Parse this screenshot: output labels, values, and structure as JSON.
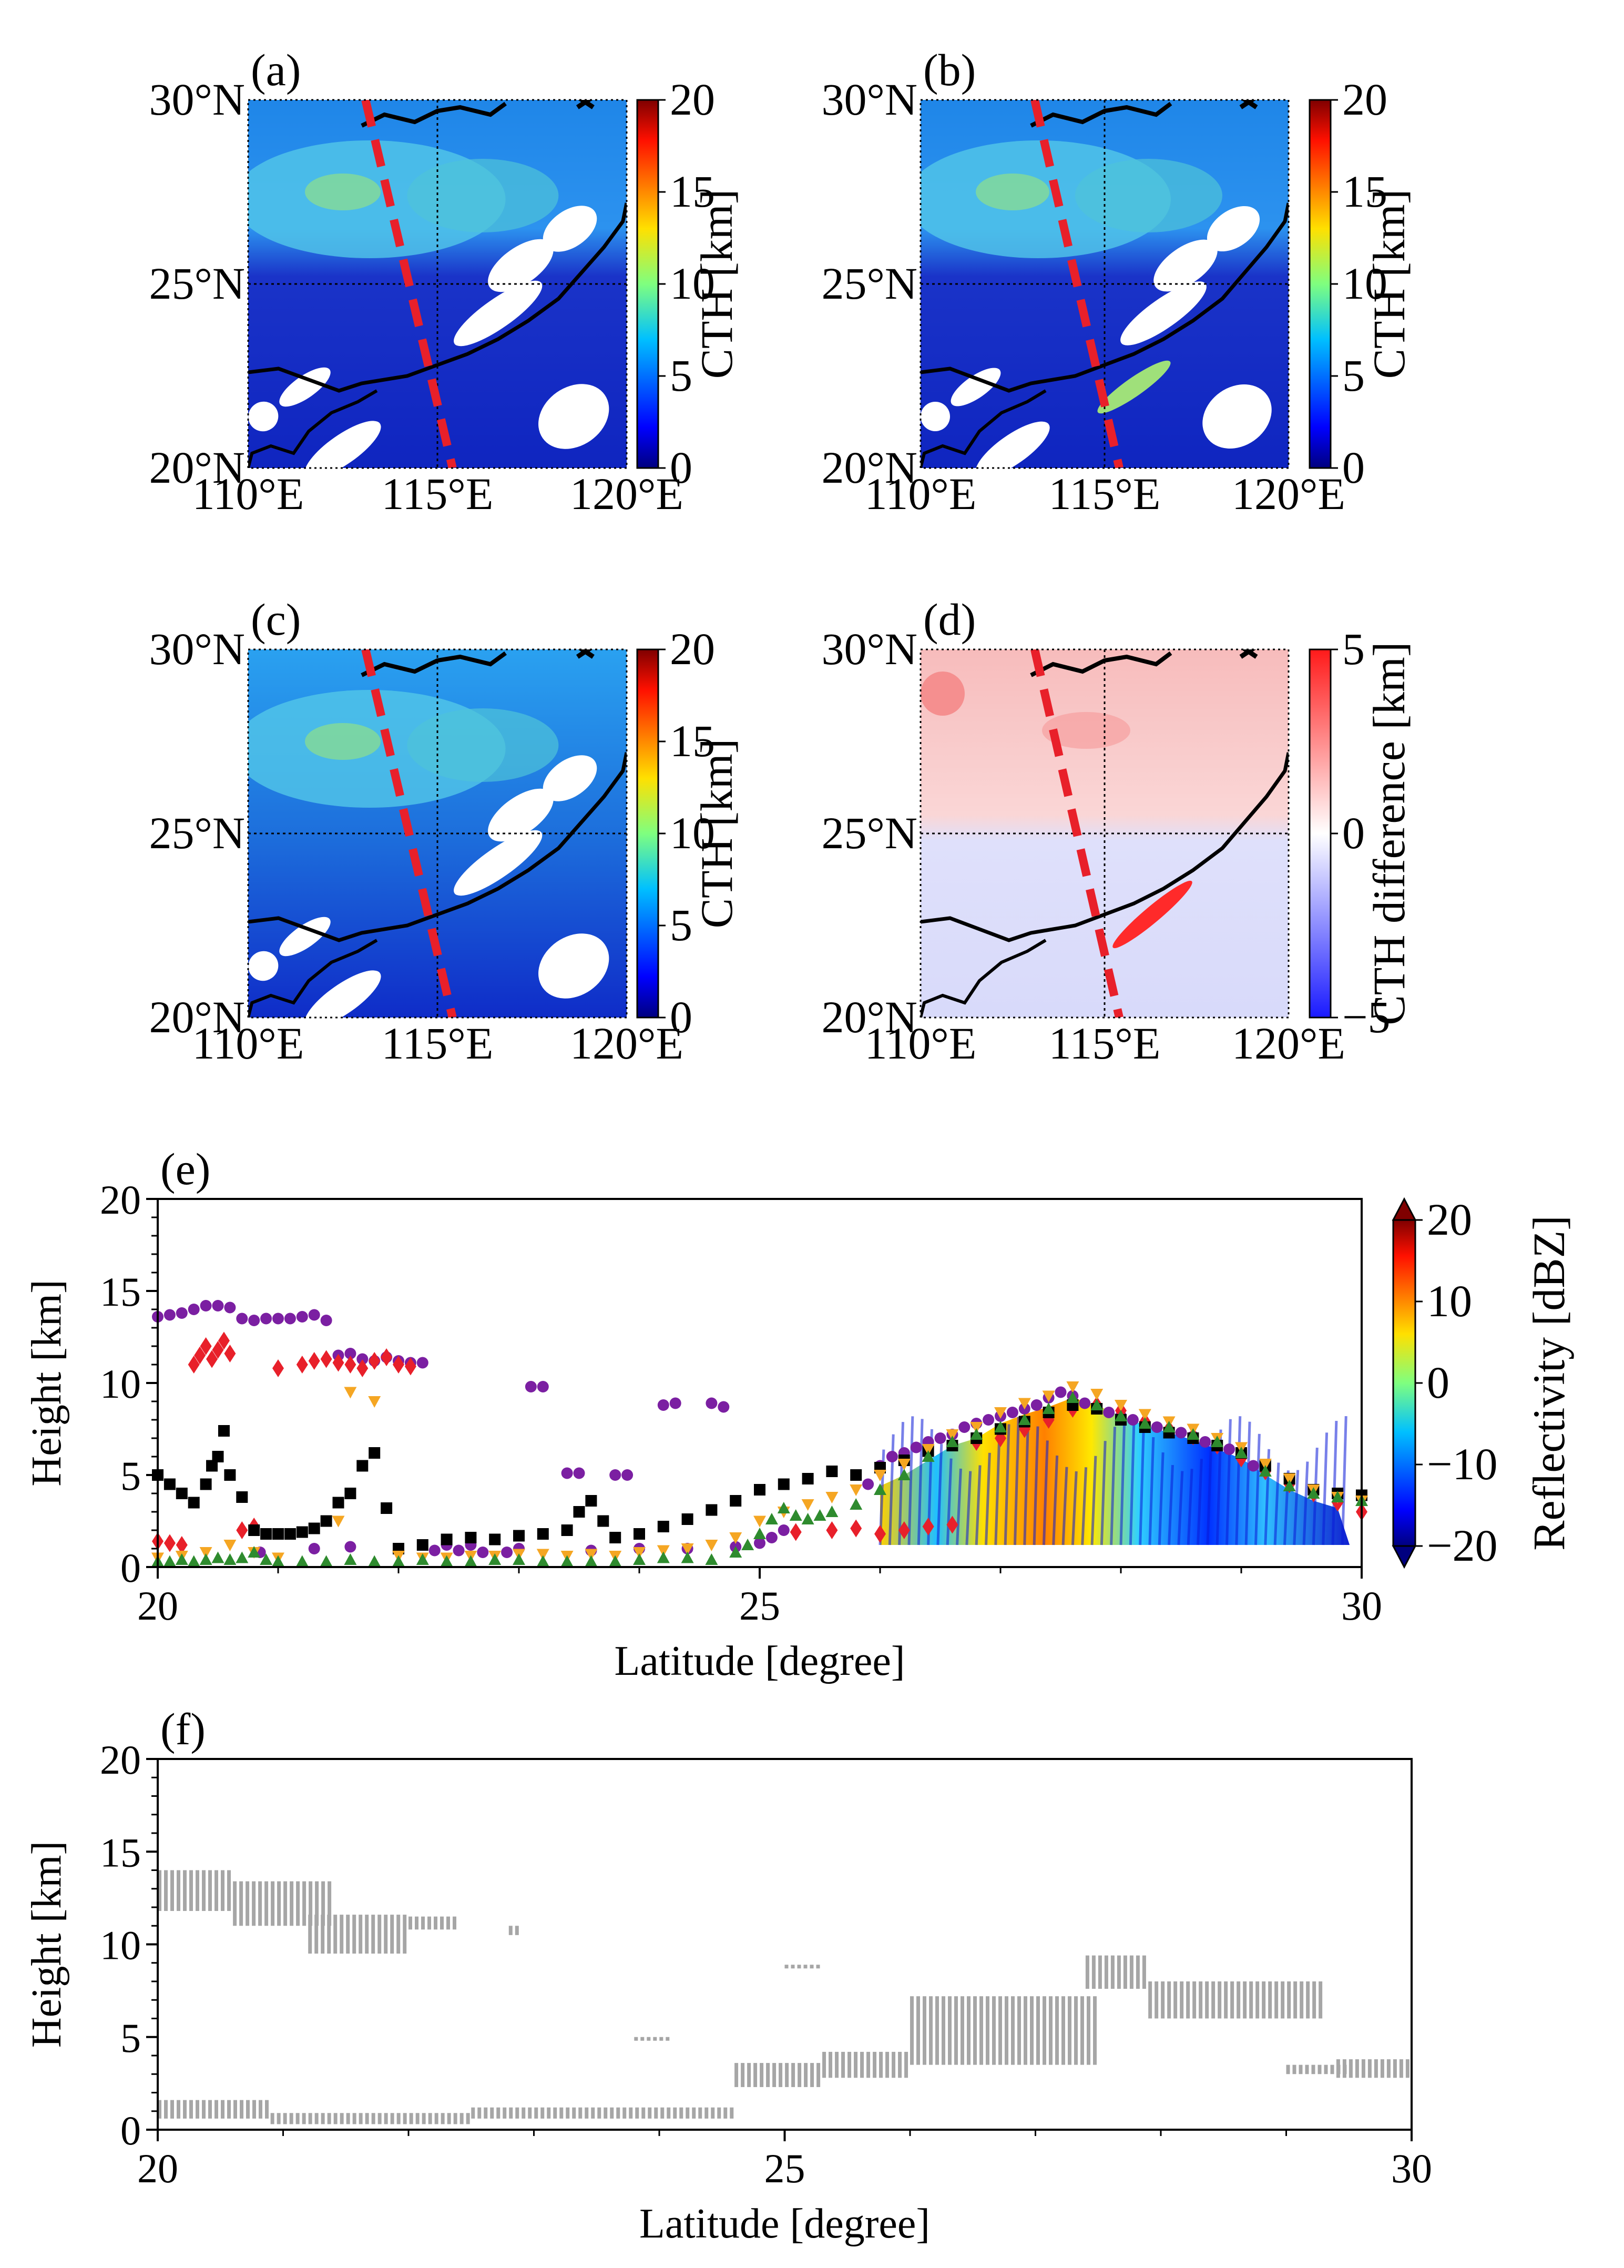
{
  "chart_data": [
    {
      "panel_label": "(a)",
      "type": "heatmap",
      "subtype": "map",
      "lat_ticks": [
        "20°N",
        "25°N",
        "30°N"
      ],
      "lon_ticks": [
        "110°E",
        "115°E",
        "120°E"
      ],
      "lat_range": [
        20,
        30
      ],
      "lon_range": [
        110,
        120
      ],
      "colorbar": {
        "label": "CTH [km]",
        "ticks": [
          "0",
          "5",
          "10",
          "15",
          "20"
        ],
        "range": [
          0,
          20
        ],
        "cmap": "jet"
      },
      "track": {
        "from": [
          113.1,
          30.0
        ],
        "to": [
          115.4,
          20.0
        ],
        "color": "#e8202a",
        "style": "dashed"
      }
    },
    {
      "panel_label": "(b)",
      "type": "heatmap",
      "subtype": "map",
      "lat_ticks": [
        "20°N",
        "25°N",
        "30°N"
      ],
      "lon_ticks": [
        "110°E",
        "115°E",
        "120°E"
      ],
      "lat_range": [
        20,
        30
      ],
      "lon_range": [
        110,
        120
      ],
      "colorbar": {
        "label": "CTH [km]",
        "ticks": [
          "0",
          "5",
          "10",
          "15",
          "20"
        ],
        "range": [
          0,
          20
        ],
        "cmap": "jet"
      },
      "track": {
        "from": [
          113.1,
          30.0
        ],
        "to": [
          115.4,
          20.0
        ],
        "color": "#e8202a",
        "style": "dashed"
      }
    },
    {
      "panel_label": "(c)",
      "type": "heatmap",
      "subtype": "map",
      "lat_ticks": [
        "20°N",
        "25°N",
        "30°N"
      ],
      "lon_ticks": [
        "110°E",
        "115°E",
        "120°E"
      ],
      "lat_range": [
        20,
        30
      ],
      "lon_range": [
        110,
        120
      ],
      "colorbar": {
        "label": "CTH [km]",
        "ticks": [
          "0",
          "5",
          "10",
          "15",
          "20"
        ],
        "range": [
          0,
          20
        ],
        "cmap": "jet"
      },
      "track": {
        "from": [
          113.1,
          30.0
        ],
        "to": [
          115.4,
          20.0
        ],
        "color": "#e8202a",
        "style": "dashed"
      }
    },
    {
      "panel_label": "(d)",
      "type": "heatmap",
      "subtype": "map",
      "lat_ticks": [
        "20°N",
        "25°N",
        "30°N"
      ],
      "lon_ticks": [
        "110°E",
        "115°E",
        "120°E"
      ],
      "lat_range": [
        20,
        30
      ],
      "lon_range": [
        110,
        120
      ],
      "colorbar": {
        "label": "CTH difference [km]",
        "ticks": [
          "−5",
          "0",
          "5"
        ],
        "range": [
          -5,
          5
        ],
        "cmap": "bwr"
      },
      "track": {
        "from": [
          113.1,
          30.0
        ],
        "to": [
          115.4,
          20.0
        ],
        "color": "#e8202a",
        "style": "dashed"
      }
    },
    {
      "panel_label": "(e)",
      "type": "scatter",
      "xlabel": "Latitude [degree]",
      "ylabel": "Height [km]",
      "xlim": [
        20,
        30
      ],
      "ylim": [
        0,
        20
      ],
      "x_ticks": [
        "20",
        "25",
        "30"
      ],
      "y_ticks": [
        "0",
        "5",
        "10",
        "15",
        "20"
      ],
      "colorbar": {
        "label": "Reflectivity [dBZ]",
        "ticks": [
          "−20",
          "−10",
          "0",
          "10",
          "20"
        ],
        "range": [
          -20,
          20
        ],
        "cmap": "jet",
        "extend": "both"
      },
      "reflectivity_region": {
        "x_range": [
          26.0,
          29.9
        ],
        "y_bottom": 1.2
      },
      "series": [
        {
          "name": "purple circles",
          "color": "#7b1fa2",
          "marker": "circle",
          "x": [
            20.0,
            20.1,
            20.2,
            20.3,
            20.4,
            20.5,
            20.6,
            20.7,
            20.8,
            20.9,
            21.0,
            21.1,
            21.2,
            21.3,
            21.4,
            21.5,
            21.6,
            21.7,
            21.8,
            21.9,
            22.0,
            22.1,
            22.2,
            23.1,
            23.2,
            23.4,
            23.5,
            23.8,
            23.9,
            24.2,
            24.3,
            24.6,
            24.7,
            25.0,
            25.1,
            25.2,
            25.9,
            26.0,
            26.1,
            26.2,
            26.3,
            26.4,
            26.5,
            26.6,
            26.7,
            26.8,
            26.9,
            27.0,
            27.1,
            27.2,
            27.3,
            27.4,
            27.5,
            27.6,
            27.7,
            27.8,
            27.9,
            28.0,
            28.1,
            28.2,
            28.3,
            28.4,
            28.5,
            28.6,
            28.7,
            28.8,
            28.9,
            29.0,
            29.1,
            22.4,
            22.6,
            20.85,
            21.3,
            21.6,
            22.3,
            22.5,
            22.7,
            22.9,
            23.0,
            23.6,
            24.0,
            24.4,
            24.8
          ],
          "y": [
            13.6,
            13.7,
            13.8,
            14.0,
            14.2,
            14.2,
            14.1,
            13.5,
            13.4,
            13.5,
            13.5,
            13.5,
            13.6,
            13.7,
            13.4,
            11.5,
            11.6,
            11.3,
            11.2,
            11.4,
            11.2,
            11.1,
            11.1,
            9.8,
            9.8,
            5.1,
            5.1,
            5.0,
            5.0,
            8.8,
            8.9,
            8.9,
            8.7,
            1.3,
            1.6,
            2.0,
            4.5,
            5.5,
            6.0,
            6.2,
            6.5,
            6.8,
            7.0,
            7.2,
            7.6,
            7.8,
            8.0,
            8.2,
            8.4,
            8.6,
            8.8,
            9.2,
            9.5,
            9.3,
            8.9,
            8.6,
            8.4,
            8.2,
            8.0,
            7.8,
            7.6,
            7.4,
            7.3,
            7.1,
            6.8,
            6.6,
            6.4,
            6.0,
            5.5,
            1.2,
            1.2,
            0.8,
            1.0,
            1.1,
            0.9,
            0.9,
            0.8,
            0.8,
            1.0,
            0.9,
            1.0,
            1.0,
            1.1
          ]
        },
        {
          "name": "red diamonds",
          "color": "#e8202a",
          "marker": "diamond",
          "x": [
            20.0,
            20.1,
            20.2,
            20.3,
            20.35,
            20.4,
            20.45,
            20.5,
            20.55,
            20.6,
            20.7,
            20.8,
            21.0,
            21.2,
            21.3,
            21.4,
            21.5,
            21.6,
            21.7,
            21.8,
            21.9,
            22.0,
            22.1,
            26.0,
            26.2,
            26.4,
            26.6,
            26.8,
            27.0,
            27.2,
            27.4,
            27.6,
            27.8,
            28.0,
            28.2,
            28.4,
            28.6,
            28.8,
            29.0,
            29.2,
            29.4,
            29.6,
            29.8,
            30.0,
            25.3,
            25.6,
            25.8
          ],
          "y": [
            1.4,
            1.3,
            1.2,
            11.0,
            11.5,
            12.0,
            11.3,
            11.8,
            12.3,
            11.6,
            2.0,
            2.2,
            10.8,
            11.0,
            11.2,
            11.3,
            11.1,
            11.0,
            10.8,
            11.2,
            11.4,
            11.0,
            10.9,
            1.8,
            2.0,
            2.2,
            2.3,
            6.8,
            7.0,
            7.5,
            8.0,
            8.6,
            8.8,
            8.5,
            7.9,
            7.5,
            7.1,
            6.6,
            5.9,
            5.2,
            4.5,
            4.0,
            3.5,
            3.0,
            1.9,
            2.0,
            2.1
          ]
        },
        {
          "name": "black squares",
          "color": "#000000",
          "marker": "square",
          "x": [
            20.0,
            20.1,
            20.2,
            20.3,
            20.4,
            20.45,
            20.5,
            20.55,
            20.6,
            20.7,
            20.8,
            20.9,
            21.0,
            21.1,
            21.2,
            21.3,
            21.4,
            21.5,
            21.6,
            21.7,
            21.8,
            21.9,
            22.0,
            22.2,
            22.4,
            22.6,
            22.8,
            23.0,
            23.2,
            23.4,
            23.5,
            23.6,
            23.7,
            23.8,
            24.0,
            24.2,
            24.4,
            24.6,
            24.8,
            25.0,
            25.2,
            25.4,
            25.6,
            25.8,
            26.0,
            26.2,
            26.4,
            26.6,
            26.8,
            27.0,
            27.2,
            27.4,
            27.6,
            27.8,
            28.0,
            28.2,
            28.4,
            28.6,
            28.8,
            29.0,
            29.2,
            29.4,
            29.6,
            29.8,
            30.0
          ],
          "y": [
            5.0,
            4.5,
            4.0,
            3.5,
            4.5,
            5.5,
            6.0,
            7.4,
            5.0,
            3.8,
            2.0,
            1.8,
            1.8,
            1.8,
            1.9,
            2.1,
            2.5,
            3.5,
            4.0,
            5.5,
            6.2,
            3.2,
            1.0,
            1.2,
            1.5,
            1.6,
            1.5,
            1.7,
            1.8,
            2.0,
            3.0,
            3.6,
            2.5,
            1.6,
            1.8,
            2.2,
            2.6,
            3.1,
            3.6,
            4.2,
            4.5,
            4.8,
            5.2,
            5.0,
            5.4,
            5.8,
            6.3,
            6.6,
            7.0,
            7.5,
            7.9,
            8.4,
            8.8,
            8.6,
            8.0,
            7.6,
            7.3,
            7.0,
            6.6,
            6.2,
            5.5,
            4.8,
            4.2,
            4.0,
            3.9
          ]
        },
        {
          "name": "orange triangles",
          "color": "#f5a623",
          "marker": "triangle-down",
          "x": [
            20.0,
            20.2,
            20.4,
            20.6,
            20.8,
            21.0,
            21.5,
            21.6,
            21.8,
            22.0,
            22.2,
            22.4,
            22.6,
            22.8,
            23.0,
            23.2,
            23.4,
            23.6,
            23.8,
            24.0,
            24.2,
            24.4,
            24.6,
            24.8,
            25.0,
            25.2,
            25.4,
            25.6,
            25.8,
            26.0,
            26.2,
            26.4,
            26.6,
            26.8,
            27.0,
            27.2,
            27.4,
            27.6,
            27.8,
            28.0,
            28.2,
            28.4,
            28.6,
            28.8,
            29.0,
            29.2,
            29.4,
            29.6,
            29.8,
            30.0
          ],
          "y": [
            0.5,
            0.6,
            0.8,
            1.2,
            0.8,
            0.5,
            2.5,
            9.5,
            9.0,
            0.6,
            0.5,
            0.5,
            0.6,
            0.6,
            0.7,
            0.7,
            0.6,
            0.7,
            0.6,
            0.8,
            0.9,
            1.0,
            1.2,
            1.6,
            2.5,
            3.0,
            3.4,
            3.8,
            4.2,
            5.0,
            5.6,
            6.4,
            7.2,
            7.6,
            8.4,
            8.9,
            9.3,
            9.8,
            9.4,
            8.8,
            8.3,
            7.9,
            7.5,
            7.0,
            6.5,
            5.6,
            4.8,
            4.2,
            3.8,
            3.6
          ]
        },
        {
          "name": "green triangles",
          "color": "#2e8b2e",
          "marker": "triangle-up",
          "x": [
            20.0,
            20.1,
            20.2,
            20.3,
            20.4,
            20.5,
            20.6,
            20.7,
            20.8,
            20.9,
            21.0,
            21.2,
            21.4,
            21.6,
            21.8,
            22.0,
            22.2,
            22.4,
            22.6,
            22.8,
            23.0,
            23.2,
            23.4,
            23.6,
            23.8,
            24.0,
            24.2,
            24.4,
            24.6,
            24.8,
            24.9,
            25.0,
            25.1,
            25.2,
            25.3,
            25.4,
            25.5,
            25.6,
            25.8,
            26.0,
            26.2,
            26.4,
            26.6,
            26.8,
            27.0,
            27.2,
            27.4,
            27.6,
            27.8,
            28.0,
            28.2,
            28.4,
            28.6,
            28.8,
            29.0,
            29.2,
            29.4,
            29.6,
            29.8,
            30.0
          ],
          "y": [
            0.3,
            0.3,
            0.4,
            0.3,
            0.4,
            0.5,
            0.4,
            0.5,
            0.8,
            0.4,
            0.3,
            0.3,
            0.3,
            0.4,
            0.3,
            0.3,
            0.4,
            0.3,
            0.3,
            0.4,
            0.4,
            0.3,
            0.3,
            0.3,
            0.3,
            0.4,
            0.5,
            0.5,
            0.4,
            0.8,
            1.2,
            1.8,
            2.6,
            3.2,
            2.8,
            2.6,
            2.8,
            3.0,
            3.4,
            4.2,
            5.0,
            6.0,
            6.8,
            7.2,
            7.6,
            8.0,
            8.6,
            9.2,
            8.8,
            8.2,
            7.8,
            7.6,
            7.2,
            6.8,
            6.2,
            5.2,
            4.4,
            4.0,
            3.8,
            3.6
          ]
        }
      ]
    },
    {
      "panel_label": "(f)",
      "type": "scatter",
      "subtype": "cloud-mask",
      "xlabel": "Latitude [degree]",
      "ylabel": "Height [km]",
      "xlim": [
        20,
        30
      ],
      "ylim": [
        0,
        20
      ],
      "x_ticks": [
        "20",
        "25",
        "30"
      ],
      "y_ticks": [
        "0",
        "5",
        "10",
        "15",
        "20"
      ],
      "color": "#a6a6a6",
      "segments": [
        {
          "x0": 20.0,
          "x1": 20.6,
          "y0": 11.8,
          "y1": 14.0
        },
        {
          "x0": 20.6,
          "x1": 21.4,
          "y0": 11.0,
          "y1": 13.4
        },
        {
          "x0": 21.2,
          "x1": 22.0,
          "y0": 9.5,
          "y1": 11.6
        },
        {
          "x0": 22.0,
          "x1": 22.4,
          "y0": 10.8,
          "y1": 11.5
        },
        {
          "x0": 22.8,
          "x1": 22.9,
          "y0": 10.5,
          "y1": 11.0
        },
        {
          "x0": 20.0,
          "x1": 20.9,
          "y0": 0.6,
          "y1": 1.6
        },
        {
          "x0": 20.9,
          "x1": 22.5,
          "y0": 0.3,
          "y1": 0.9
        },
        {
          "x0": 22.5,
          "x1": 24.6,
          "y0": 0.6,
          "y1": 1.2
        },
        {
          "x0": 23.8,
          "x1": 24.1,
          "y0": 4.8,
          "y1": 5.0
        },
        {
          "x0": 24.6,
          "x1": 25.3,
          "y0": 2.3,
          "y1": 3.6
        },
        {
          "x0": 25.3,
          "x1": 26.0,
          "y0": 2.8,
          "y1": 4.2
        },
        {
          "x0": 26.0,
          "x1": 27.5,
          "y0": 3.5,
          "y1": 7.2
        },
        {
          "x0": 27.4,
          "x1": 27.9,
          "y0": 7.6,
          "y1": 9.4
        },
        {
          "x0": 27.9,
          "x1": 29.3,
          "y0": 6.0,
          "y1": 8.0
        },
        {
          "x0": 29.0,
          "x1": 29.5,
          "y0": 3.0,
          "y1": 3.5
        },
        {
          "x0": 29.4,
          "x1": 30.0,
          "y0": 2.8,
          "y1": 3.8
        },
        {
          "x0": 25.0,
          "x1": 25.3,
          "y0": 8.7,
          "y1": 8.9
        }
      ]
    }
  ]
}
